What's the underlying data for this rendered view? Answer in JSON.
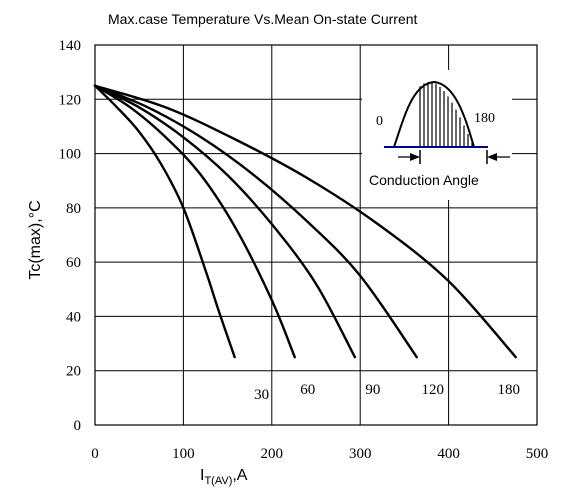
{
  "chart_data": {
    "type": "line",
    "title": "Max.case Temperature Vs.Mean On-state Current",
    "ylabel": "Tc(max),°C",
    "xlabel_main": "I",
    "xlabel_sub": "T(AV)",
    "xlabel_tail": ",A",
    "xlim": [
      0,
      500
    ],
    "ylim": [
      0,
      140
    ],
    "x_ticks": [
      "0",
      "100",
      "200",
      "300",
      "400",
      "500"
    ],
    "y_ticks": [
      "0",
      "20",
      "40",
      "60",
      "80",
      "100",
      "120",
      "140"
    ],
    "grid": true,
    "series": [
      {
        "name": "30",
        "x": [
          0,
          25,
          50,
          75,
          100,
          125,
          140,
          158
        ],
        "y": [
          125,
          117,
          108,
          96,
          80,
          57,
          42,
          25
        ]
      },
      {
        "name": "60",
        "x": [
          0,
          40,
          80,
          120,
          160,
          200,
          226
        ],
        "y": [
          125,
          117,
          106,
          92,
          72,
          46,
          25
        ]
      },
      {
        "name": "90",
        "x": [
          0,
          50,
          100,
          150,
          200,
          250,
          294
        ],
        "y": [
          125,
          117,
          106,
          92,
          74,
          52,
          25
        ]
      },
      {
        "name": "120",
        "x": [
          0,
          60,
          120,
          180,
          240,
          300,
          364
        ],
        "y": [
          125,
          117,
          106,
          92,
          75,
          55,
          25
        ]
      },
      {
        "name": "180",
        "x": [
          0,
          80,
          160,
          240,
          320,
          400,
          476
        ],
        "y": [
          125,
          117,
          105,
          91,
          74,
          53,
          25
        ]
      }
    ],
    "inset": {
      "label_start": "0",
      "label_end": "180",
      "caption": "Conduction Angle",
      "baseline_color": "#000080"
    }
  }
}
